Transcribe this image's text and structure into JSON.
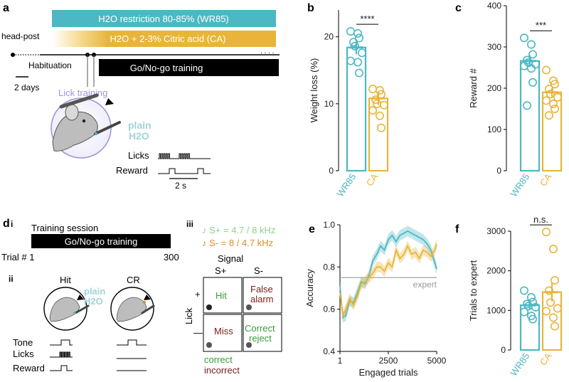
{
  "colors": {
    "teal": "#4bb8c3",
    "gold": "#e8b53a",
    "lavender": "#9b97df",
    "orange": "#e08a2a",
    "green": "#3a9c3a",
    "maroon": "#7a1b1b",
    "lightgreen": "#8fd18a"
  },
  "panel_a": {
    "label": "a",
    "wr85_bar": "H2O restriction 80-85% (WR85)",
    "ca_bar": "H2O + 2-3% Citric acid (CA)",
    "head_post": "head-post",
    "habituation": "Habituation",
    "scale": "2 days",
    "gonogo": "Go/No-go training",
    "lick_training": "Lick training",
    "plain": "plain",
    "h2o": "H2O",
    "licks": "Licks",
    "reward": "Reward",
    "timescale": "2 s",
    "ellipsis": ". . . ."
  },
  "panel_d": {
    "label": "d",
    "i": "i",
    "session": "Training session",
    "gonogo": "Go/No-go training",
    "trial": "Trial # 1",
    "trial_end": "300",
    "ii": "ii",
    "hit": "Hit",
    "cr": "CR",
    "plain": "plain",
    "h2o": "H2O",
    "tone": "Tone",
    "licks": "Licks",
    "reward": "Reward",
    "iii": "iii",
    "splus": "♪ S+ = 4.7 / 8 kHz",
    "sminus": "♪ S- = 8 / 4.7 kHz",
    "signal": "Signal",
    "col_splus": "S+",
    "col_sminus": "S-",
    "lick": "Lick",
    "plus": "+",
    "minus": "—",
    "cell_hit": "Hit",
    "cell_fa1": "False",
    "cell_fa2": "alarm",
    "cell_miss": "Miss",
    "cell_cr1": "Correct",
    "cell_cr2": "reject",
    "correct": "correct",
    "incorrect": "incorrect"
  },
  "chart_data": [
    {
      "panel": "b",
      "type": "bar",
      "ylabel": "Weight loss (%)",
      "categories": [
        "WR85",
        "CA"
      ],
      "values": [
        18.4,
        10.8
      ],
      "sem": [
        1.0,
        1.0
      ],
      "yticks": [
        "0",
        "10",
        "20"
      ],
      "ylim": [
        0,
        24
      ],
      "points": [
        [
          20.8,
          20.5,
          19.8,
          19.2,
          18.6,
          17.6,
          16.4,
          16.2,
          14.6
        ],
        [
          12.2,
          12.0,
          11.4,
          10.6,
          10.0,
          9.8,
          9.0,
          8.2,
          6.4
        ]
      ],
      "significance": "****"
    },
    {
      "panel": "c",
      "type": "bar",
      "ylabel": "Reward #",
      "categories": [
        "WR85",
        "CA"
      ],
      "values": [
        266,
        190
      ],
      "sem": [
        14,
        10
      ],
      "yticks": [
        "0",
        "100",
        "200",
        "300",
        "400"
      ],
      "ylim": [
        0,
        400
      ],
      "points": [
        [
          322,
          306,
          282,
          268,
          262,
          258,
          254,
          248,
          214,
          158
        ],
        [
          244,
          218,
          210,
          198,
          186,
          178,
          170,
          162,
          150,
          134
        ]
      ],
      "significance": "***"
    },
    {
      "panel": "e",
      "type": "line",
      "ylabel": "Accuracy",
      "xlabel": "Engaged trials",
      "xticks": [
        "1",
        "2500",
        "5000"
      ],
      "yticks": [
        "0.4",
        "0.6",
        "0.8",
        "1.0"
      ],
      "xlim": [
        1,
        5000
      ],
      "ylim": [
        0.4,
        1.0
      ],
      "expert_level": 0.75,
      "expert_label": "expert",
      "series": [
        {
          "color": "teal",
          "x": [
            1,
            150,
            300,
            500,
            700,
            900,
            1100,
            1300,
            1500,
            1700,
            1900,
            2100,
            2300,
            2500,
            2700,
            2900,
            3100,
            3300,
            3500,
            3700,
            3900,
            4100,
            4300,
            4500,
            4700,
            4900,
            5000
          ],
          "y": [
            0.71,
            0.56,
            0.57,
            0.64,
            0.63,
            0.68,
            0.73,
            0.72,
            0.76,
            0.83,
            0.86,
            0.9,
            0.88,
            0.93,
            0.95,
            0.92,
            0.95,
            0.96,
            0.97,
            0.96,
            0.95,
            0.94,
            0.93,
            0.91,
            0.88,
            0.82,
            0.79
          ]
        },
        {
          "color": "gold",
          "x": [
            1,
            150,
            300,
            500,
            700,
            900,
            1100,
            1300,
            1500,
            1700,
            1900,
            2100,
            2300,
            2500,
            2700,
            2900,
            3100,
            3300,
            3500,
            3700,
            3900,
            4100,
            4300,
            4500,
            4700,
            4900,
            5000
          ],
          "y": [
            0.68,
            0.57,
            0.6,
            0.65,
            0.62,
            0.66,
            0.72,
            0.73,
            0.75,
            0.77,
            0.8,
            0.8,
            0.78,
            0.82,
            0.8,
            0.88,
            0.84,
            0.86,
            0.9,
            0.86,
            0.87,
            0.84,
            0.88,
            0.87,
            0.85,
            0.88,
            0.91
          ]
        }
      ]
    },
    {
      "panel": "f",
      "type": "bar",
      "ylabel": "Trials to expert",
      "categories": [
        "WR85",
        "CA"
      ],
      "values": [
        1130,
        1460
      ],
      "sem": [
        110,
        230
      ],
      "yticks": [
        "0",
        "1000",
        "2000",
        "3000"
      ],
      "ylim": [
        0,
        3000
      ],
      "points": [
        [
          1500,
          1330,
          1210,
          1160,
          1110,
          1080,
          960,
          860,
          780
        ],
        [
          2980,
          2550,
          1760,
          1500,
          1200,
          1050,
          980,
          820,
          600
        ]
      ],
      "significance": "n.s."
    }
  ],
  "panel_labels": {
    "b": "b",
    "c": "c",
    "e": "e",
    "f": "f"
  }
}
